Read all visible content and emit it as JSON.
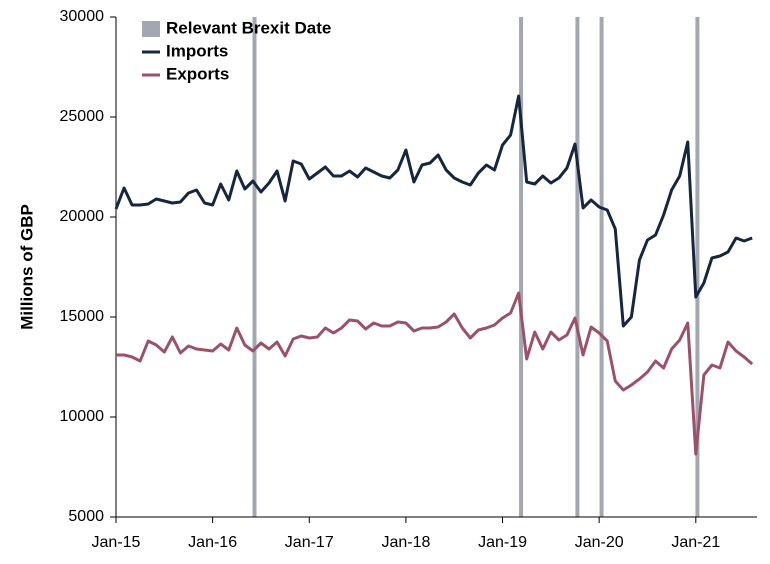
{
  "chart_data": {
    "type": "line",
    "y_label": "Millions of GBP",
    "categories": [
      "Jan-15",
      null,
      null,
      null,
      null,
      null,
      null,
      null,
      null,
      null,
      null,
      null,
      "Jan-16",
      null,
      null,
      null,
      null,
      null,
      null,
      null,
      null,
      null,
      null,
      null,
      "Jan-17",
      null,
      null,
      null,
      null,
      null,
      null,
      null,
      null,
      null,
      null,
      null,
      "Jan-18",
      null,
      null,
      null,
      null,
      null,
      null,
      null,
      null,
      null,
      null,
      null,
      "Jan-19",
      null,
      null,
      null,
      null,
      null,
      null,
      null,
      null,
      null,
      null,
      null,
      "Jan-20",
      null,
      null,
      null,
      null,
      null,
      null,
      null,
      null,
      null,
      null,
      null,
      "Jan-21",
      null,
      null,
      null,
      null,
      null,
      null,
      null
    ],
    "series": [
      {
        "name": "Imports",
        "color": "#17263f",
        "values": [
          20400,
          21450,
          20600,
          20600,
          20650,
          20900,
          20800,
          20700,
          20750,
          21200,
          21350,
          20700,
          20600,
          21650,
          20850,
          22300,
          21400,
          21800,
          21250,
          21700,
          22300,
          20800,
          22800,
          22650,
          21900,
          22200,
          22500,
          22050,
          22050,
          22300,
          22000,
          22450,
          22250,
          22050,
          21950,
          22350,
          23350,
          21750,
          22600,
          22700,
          23100,
          22350,
          21950,
          21750,
          21600,
          22200,
          22600,
          22350,
          23600,
          24100,
          26050,
          21750,
          21650,
          22050,
          21700,
          21950,
          22450,
          23650,
          20450,
          20850,
          20500,
          20350,
          19400,
          14550,
          15000,
          17850,
          18850,
          19100,
          20100,
          21350,
          22050,
          23750,
          16000,
          16700,
          17950,
          18050,
          18250,
          18950,
          18800,
          18950
        ]
      },
      {
        "name": "Exports",
        "color": "#9b5268",
        "values": [
          13100,
          13100,
          13000,
          12800,
          13800,
          13600,
          13250,
          14000,
          13200,
          13550,
          13400,
          13350,
          13300,
          13650,
          13350,
          14450,
          13600,
          13300,
          13700,
          13400,
          13750,
          13050,
          13900,
          14050,
          13950,
          14000,
          14450,
          14200,
          14450,
          14850,
          14800,
          14400,
          14700,
          14550,
          14550,
          14750,
          14700,
          14300,
          14450,
          14450,
          14500,
          14750,
          15150,
          14450,
          13950,
          14350,
          14450,
          14600,
          14950,
          15200,
          16200,
          12900,
          14250,
          13400,
          14250,
          13850,
          14100,
          14950,
          13100,
          14500,
          14200,
          13800,
          11800,
          11350,
          11600,
          11900,
          12250,
          12800,
          12450,
          13400,
          13850,
          14700,
          8150,
          12100,
          12600,
          12450,
          13750,
          13300,
          13000,
          12650
        ]
      }
    ],
    "markers": {
      "name": "Relevant Brexit Date",
      "color": "#a3a7b1",
      "x": [
        17.2,
        50.3,
        57.3,
        60.3,
        72.2
      ]
    },
    "ylim": [
      5000,
      30000
    ],
    "yticks": [
      5000,
      10000,
      15000,
      20000,
      25000,
      30000
    ],
    "grid": false,
    "legend": "top-left"
  }
}
